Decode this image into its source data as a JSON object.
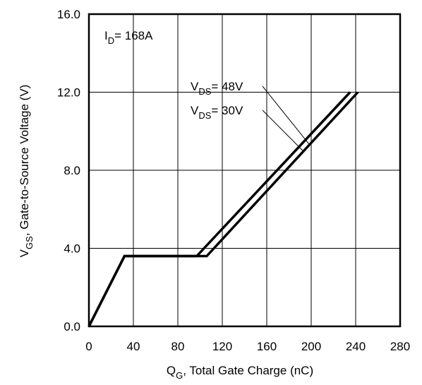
{
  "chart_data": {
    "type": "line",
    "x_label": {
      "symbol": "Q",
      "subscript": "G",
      "text": ",  Total Gate Charge (nC)"
    },
    "y_label": {
      "symbol": "V",
      "subscript": "GS",
      "text": ", Gate-to-Source Voltage (V)"
    },
    "xlim": [
      0,
      280
    ],
    "ylim": [
      0,
      16
    ],
    "x_ticks": [
      "0",
      "40",
      "80",
      "120",
      "160",
      "200",
      "240",
      "280"
    ],
    "x_tick_values": [
      0,
      40,
      80,
      120,
      160,
      200,
      240,
      280
    ],
    "y_ticks": [
      "0.0",
      "4.0",
      "8.0",
      "12.0",
      "16.0"
    ],
    "y_tick_values": [
      0,
      4,
      8,
      12,
      16
    ],
    "grid": true,
    "condition": {
      "symbol": "I",
      "subscript": "D",
      "text": "= 168A"
    },
    "series": [
      {
        "label": {
          "symbol": "V",
          "subscript": "DS",
          "text": "= 48V"
        },
        "x": [
          0,
          32,
          106,
          242
        ],
        "y": [
          0,
          3.6,
          3.6,
          12
        ]
      },
      {
        "label": {
          "symbol": "V",
          "subscript": "DS",
          "text": "= 30V"
        },
        "x": [
          0,
          32,
          97,
          235
        ],
        "y": [
          0,
          3.6,
          3.6,
          12
        ]
      }
    ]
  }
}
